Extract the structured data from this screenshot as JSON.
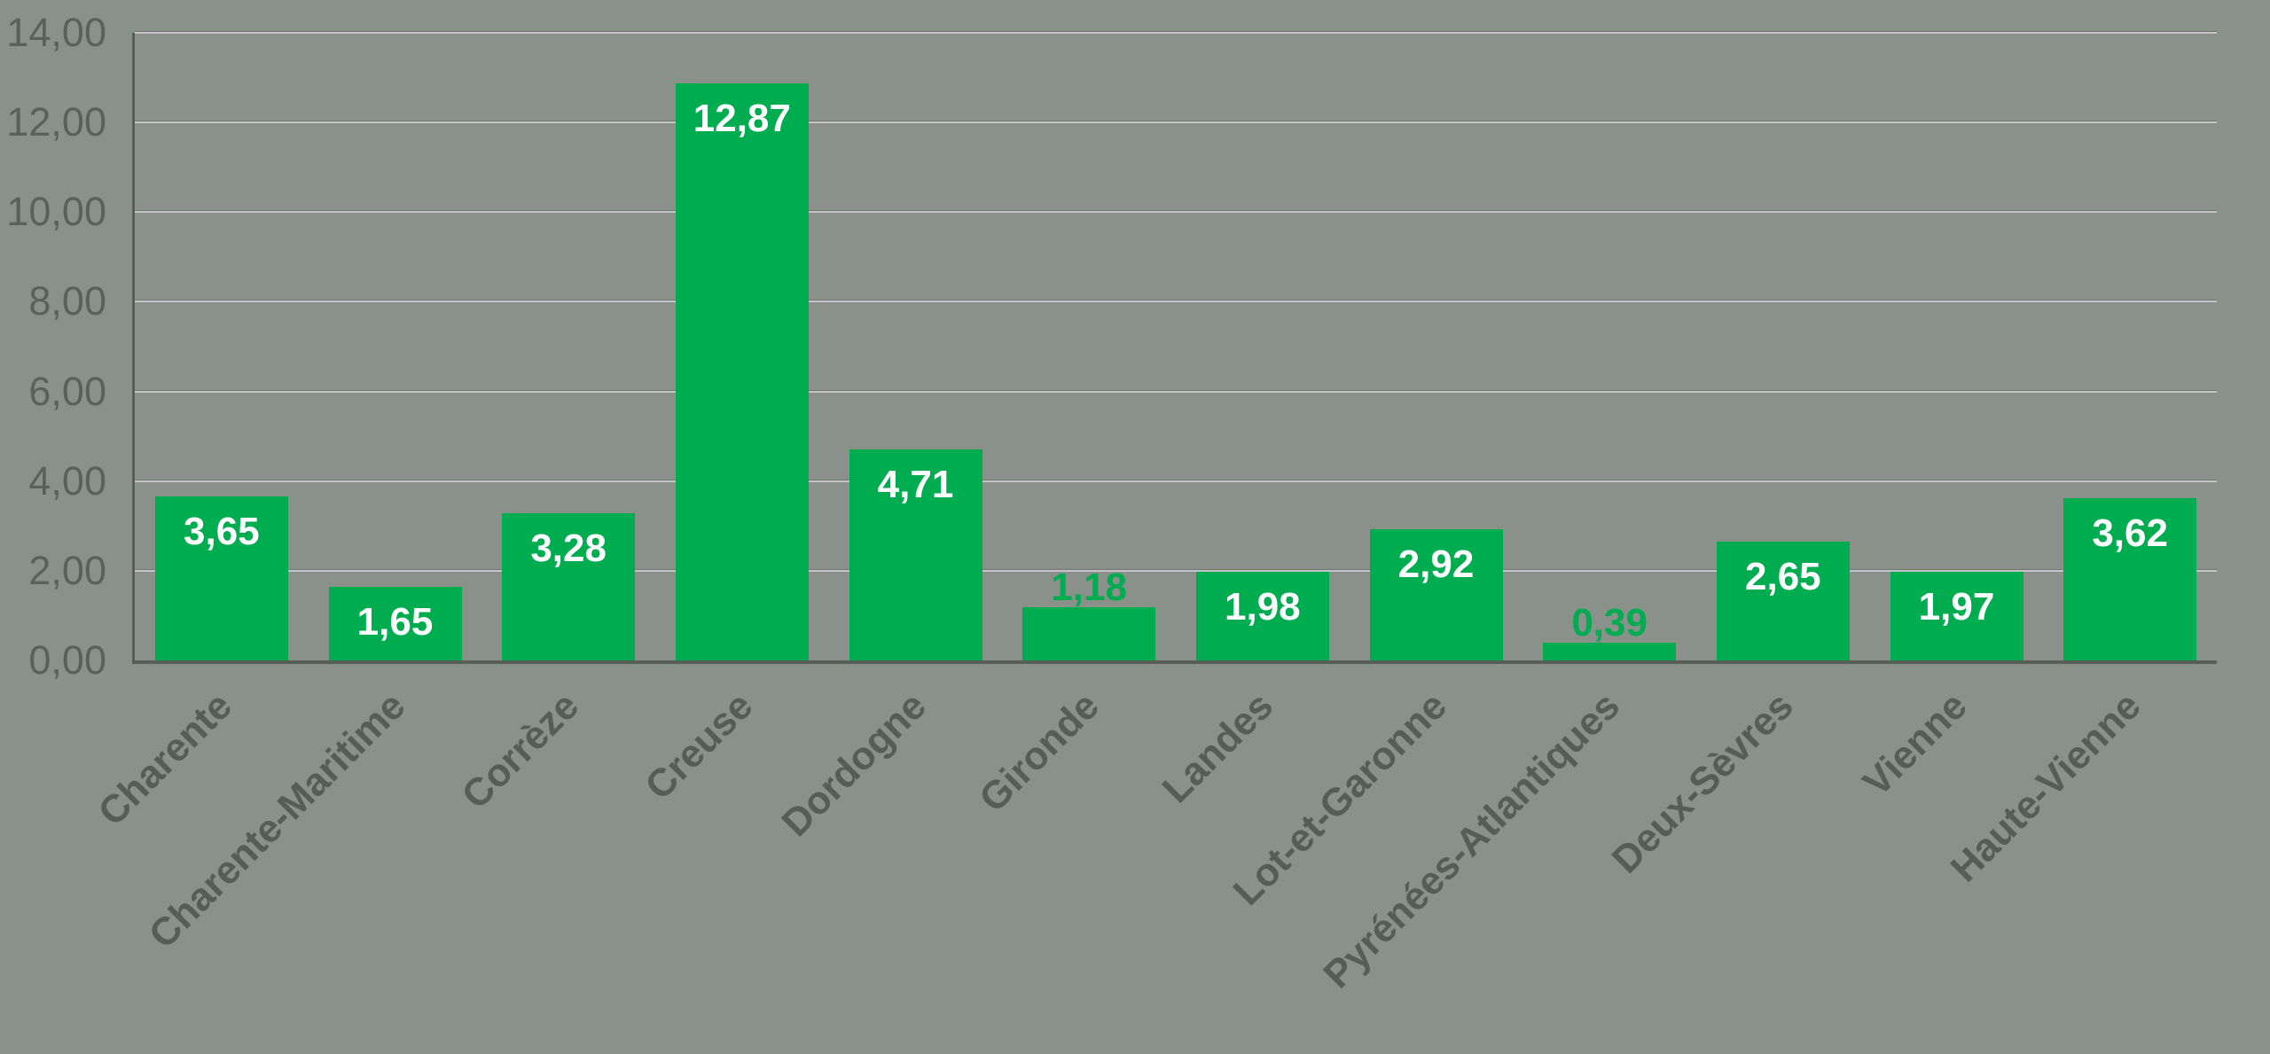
{
  "chart_data": {
    "type": "bar",
    "title": "",
    "xlabel": "",
    "ylabel": "",
    "categories": [
      "Charente",
      "Charente-Maritime",
      "Corrèze",
      "Creuse",
      "Dordogne",
      "Gironde",
      "Landes",
      "Lot-et-Garonne",
      "Pyrénées-Atlantiques",
      "Deux-Sèvres",
      "Vienne",
      "Haute-Vienne"
    ],
    "values": [
      3.65,
      1.65,
      3.28,
      12.87,
      4.71,
      1.18,
      1.98,
      2.92,
      0.39,
      2.65,
      1.97,
      3.62
    ],
    "value_labels": [
      "3,65",
      "1,65",
      "3,28",
      "12,87",
      "4,71",
      "1,18",
      "1,98",
      "2,92",
      "0,39",
      "2,65",
      "1,97",
      "3,62"
    ],
    "value_label_placement": [
      "inside",
      "inside",
      "inside",
      "inside",
      "inside",
      "outside",
      "inside",
      "inside",
      "outside",
      "inside",
      "inside",
      "inside"
    ],
    "ylim": [
      0,
      14
    ],
    "ytick_labels": [
      "0,00",
      "2,00",
      "4,00",
      "6,00",
      "8,00",
      "10,00",
      "12,00",
      "14,00"
    ],
    "ytick_step": 2,
    "grid": true,
    "legend": false,
    "decimal_separator": ","
  },
  "colors": {
    "background": "#8A918A",
    "bar_fill": "#00AC50",
    "value_label_inside": "#FFFFFF",
    "value_label_outside": "#00AC50",
    "axis_line": "#575E58",
    "gridline_light": "#C6C4C8",
    "gridline_dark": "#6E756E",
    "ytick_text": "#5A605B",
    "category_text": "#565C57"
  }
}
